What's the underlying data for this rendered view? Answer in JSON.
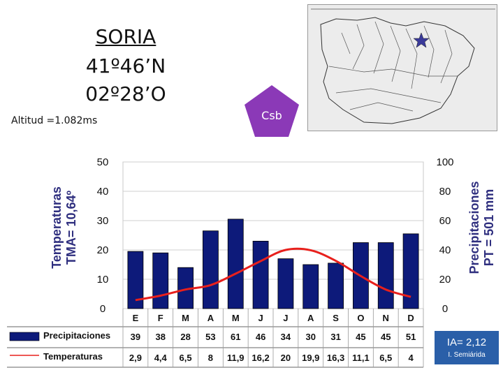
{
  "header": {
    "station": "SORIA",
    "latitude": "41º46’N",
    "longitude": "02º28’O",
    "altitude": "Altitud =1.082ms",
    "climate_code": "Csb"
  },
  "index_box": {
    "ia": "IA= 2,12",
    "class": "I. Semiárida"
  },
  "colors": {
    "bars": "#0d1a7a",
    "line": "#e8201c",
    "pentagon": "#8b39b7",
    "label": "#2f2f7f",
    "index_box": "#2a5fa8"
  },
  "chart_data": {
    "type": "bar",
    "categories": [
      "E",
      "F",
      "M",
      "A",
      "M",
      "J",
      "J",
      "A",
      "S",
      "O",
      "N",
      "D"
    ],
    "series": [
      {
        "name": "Precipitaciones",
        "axis": "right",
        "type": "bar",
        "values": [
          39,
          38,
          28,
          53,
          61,
          46,
          34,
          30,
          31,
          45,
          45,
          51
        ]
      },
      {
        "name": "Temperaturas",
        "axis": "left",
        "type": "line",
        "values": [
          2.9,
          4.4,
          6.5,
          8,
          11.9,
          16.2,
          20,
          19.9,
          16.3,
          11.1,
          6.5,
          4
        ]
      }
    ],
    "y_left": {
      "label_line1": "Temperaturas",
      "label_line2": "TMA= 10,64º",
      "range": [
        0,
        50
      ],
      "ticks": [
        "0",
        "10",
        "20",
        "30",
        "40",
        "50"
      ]
    },
    "y_right": {
      "label_line1": "Precipitaciones",
      "label_line2": "PT = 501 mm",
      "range": [
        0,
        100
      ],
      "ticks": [
        "0",
        "20",
        "40",
        "60",
        "80",
        "100"
      ]
    },
    "grid": true,
    "table": {
      "precip_label": "Precipitaciones",
      "temp_label": "Temperaturas",
      "precip_cells": [
        "39",
        "38",
        "28",
        "53",
        "61",
        "46",
        "34",
        "30",
        "31",
        "45",
        "45",
        "51"
      ],
      "temp_cells": [
        "2,9",
        "4,4",
        "6,5",
        "8",
        "11,9",
        "16,2",
        "20",
        "19,9",
        "16,3",
        "11,1",
        "6,5",
        "4"
      ]
    }
  }
}
